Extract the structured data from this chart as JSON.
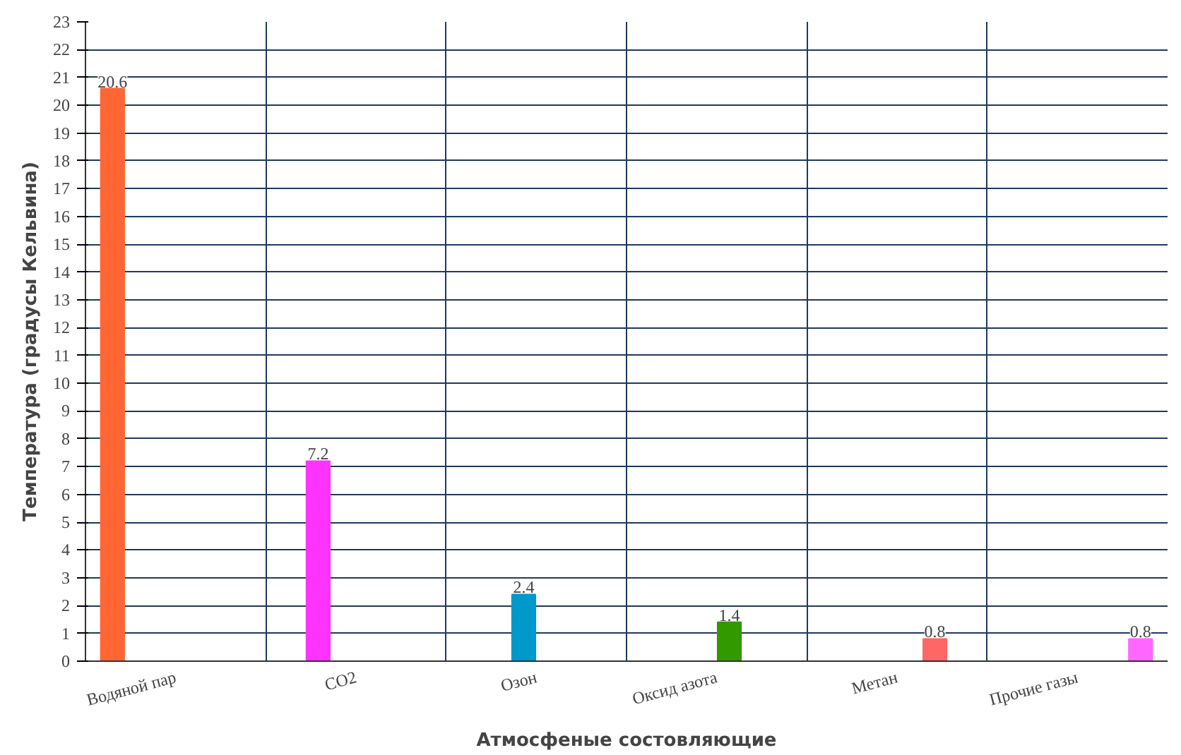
{
  "chart_data": {
    "type": "bar",
    "xlabel": "Атмосфеные состовляющие",
    "ylabel": "Температура (градусы Кельвина)",
    "categories": [
      "Водяной пар",
      "CO2",
      "Озон",
      "Оксид азота",
      "Метан",
      "Прочие газы"
    ],
    "series": [
      {
        "color": "#ff6633",
        "values": [
          20.6,
          null,
          null,
          null,
          null,
          null
        ]
      },
      {
        "color": "#ff33ff",
        "values": [
          null,
          7.2,
          null,
          null,
          null,
          null
        ]
      },
      {
        "color": "#0099cc",
        "values": [
          null,
          null,
          2.4,
          null,
          null,
          null
        ]
      },
      {
        "color": "#339900",
        "values": [
          null,
          null,
          null,
          1.4,
          null,
          null
        ]
      },
      {
        "color": "#ff6666",
        "values": [
          null,
          null,
          null,
          null,
          0.8,
          null
        ]
      },
      {
        "color": "#ff66ff",
        "values": [
          null,
          null,
          null,
          null,
          null,
          0.8
        ]
      }
    ],
    "ylim": [
      0,
      23
    ],
    "yticks": [
      0,
      1,
      2,
      3,
      4,
      5,
      6,
      7,
      8,
      9,
      10,
      11,
      12,
      13,
      14,
      15,
      16,
      17,
      18,
      19,
      20,
      21,
      22,
      23
    ],
    "grid": true,
    "data_labels": true
  }
}
